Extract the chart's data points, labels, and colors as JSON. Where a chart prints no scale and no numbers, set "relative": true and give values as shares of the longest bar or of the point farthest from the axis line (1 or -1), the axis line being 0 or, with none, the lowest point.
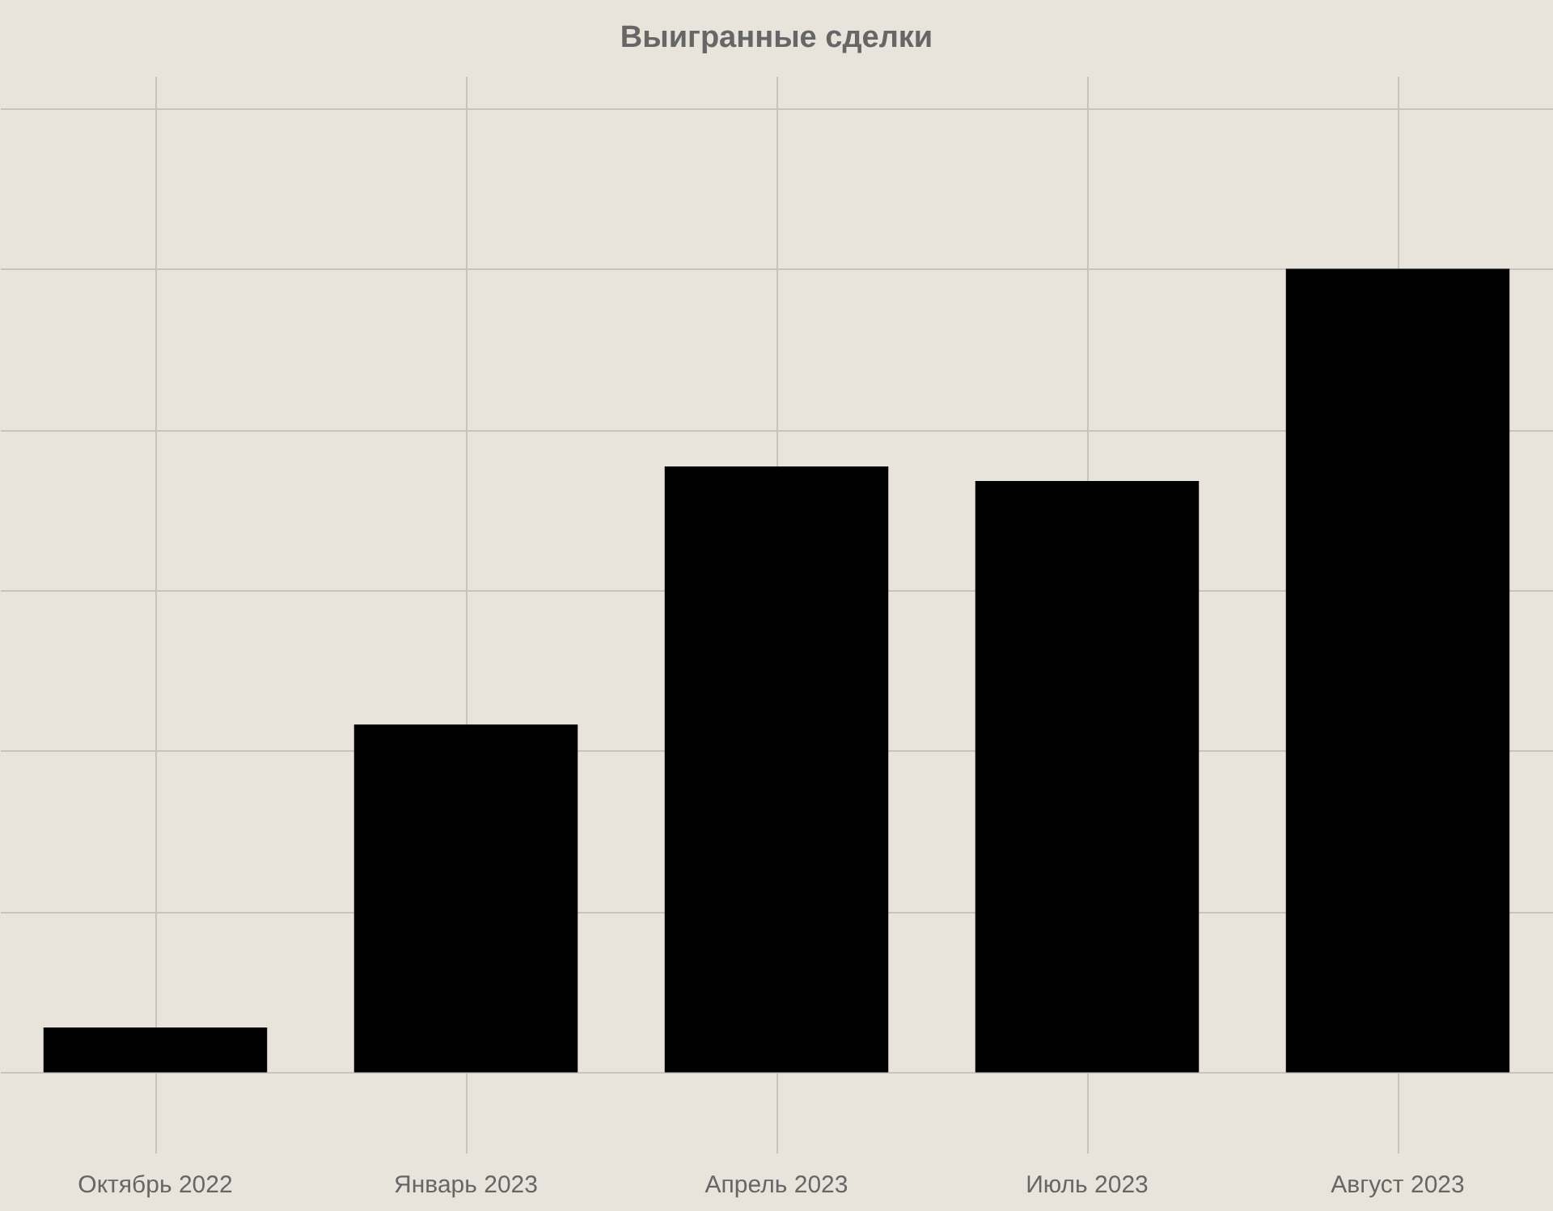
{
  "chart_data": {
    "type": "bar",
    "title": "Выигранные сделки",
    "categories": [
      "Октябрь 2022",
      "Январь 2023",
      "Апрель 2023",
      "Июль 2023",
      "Август 2023"
    ],
    "values": [
      0.056,
      0.433,
      0.754,
      0.736,
      1
    ],
    "color": "#000000",
    "relative": true,
    "grid": true
  }
}
